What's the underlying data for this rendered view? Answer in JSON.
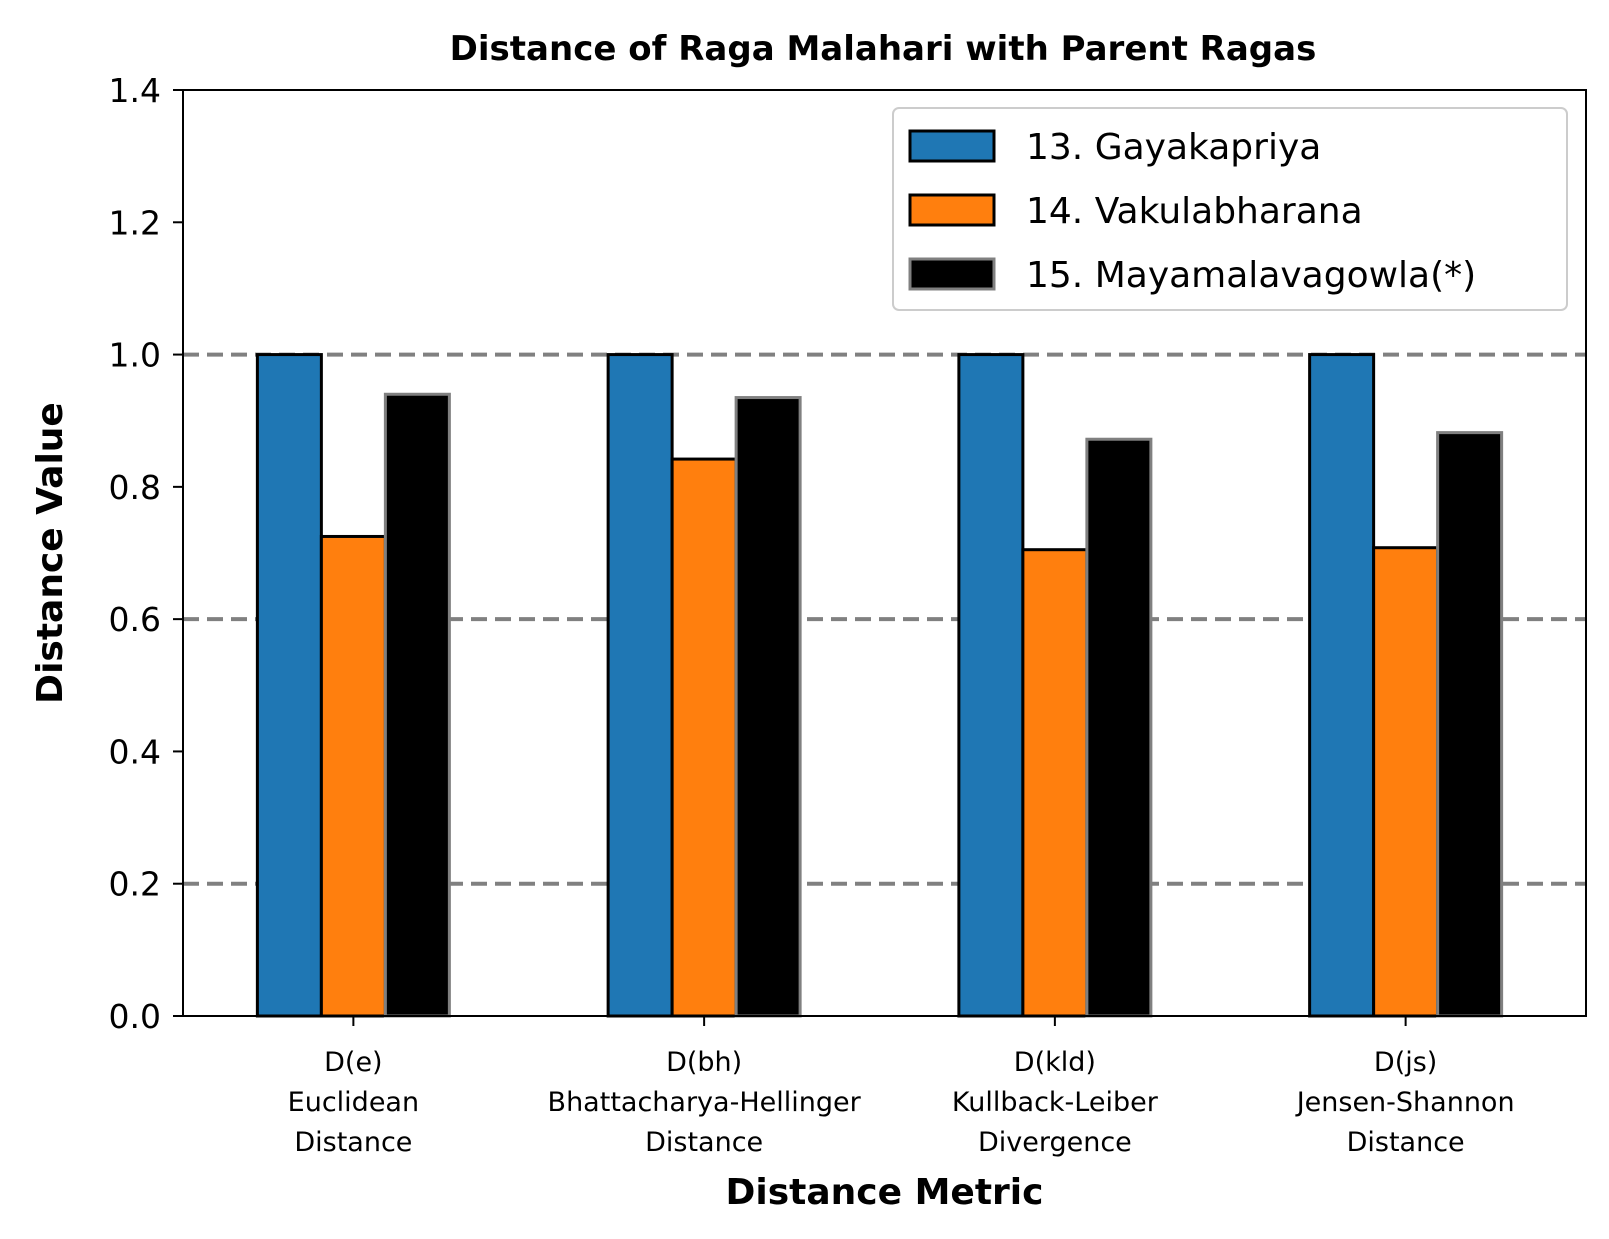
{
  "chart_data": {
    "type": "bar",
    "title": "Distance of Raga Malahari with Parent Ragas",
    "xlabel": "Distance Metric",
    "ylabel": "Distance Value",
    "ylim": [
      0,
      1.4
    ],
    "yticks": [
      "0.0",
      "0.2",
      "0.4",
      "0.6",
      "0.8",
      "1.0",
      "1.2",
      "1.4"
    ],
    "reference_lines": [
      0.2,
      0.6,
      1.0
    ],
    "legend_position": "top-right",
    "categories": [
      [
        "D(e)",
        "Euclidean",
        "Distance"
      ],
      [
        "D(bh)",
        "Bhattacharya-Hellinger",
        "Distance"
      ],
      [
        "D(kld)",
        "Kullback-Leiber",
        "Divergence"
      ],
      [
        "D(js)",
        "Jensen-Shannon",
        "Distance"
      ]
    ],
    "series": [
      {
        "name": "13. Gayakapriya",
        "color": "#1f77b4",
        "edge": "#000000",
        "values": [
          1.0,
          1.0,
          1.0,
          1.0
        ]
      },
      {
        "name": "14. Vakulabharana",
        "color": "#ff7f0e",
        "edge": "#000000",
        "values": [
          0.725,
          0.842,
          0.705,
          0.708
        ]
      },
      {
        "name": "15. Mayamalavagowla(*)",
        "color": "#000000",
        "edge": "#808080",
        "values": [
          0.94,
          0.935,
          0.872,
          0.882
        ]
      }
    ],
    "reference_line_color": "#808080"
  }
}
